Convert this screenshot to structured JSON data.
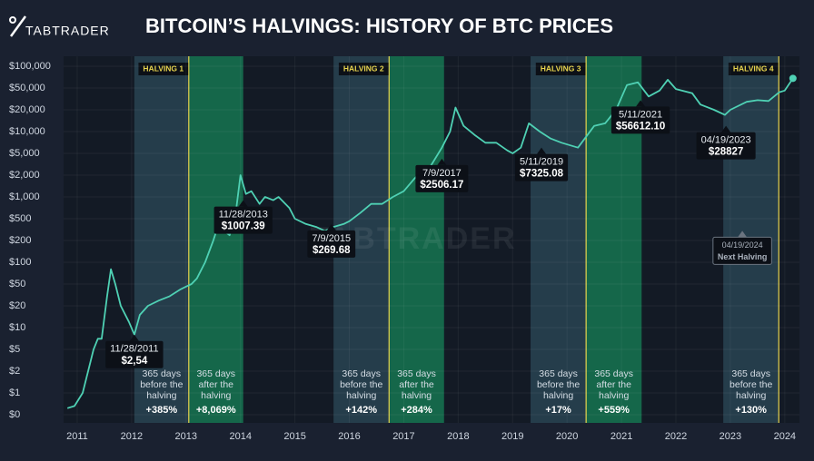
{
  "logo": "TABTRADER",
  "watermark": "TABTRADER",
  "chart_data": {
    "type": "line",
    "title": "BITCOIN’S HALVINGS: HISTORY OF BTC PRICES",
    "x": [
      2010.82,
      2010.95,
      2011.1,
      2011.2,
      2011.3,
      2011.38,
      2011.45,
      2011.55,
      2011.62,
      2011.7,
      2011.8,
      2011.95,
      2012.05,
      2012.15,
      2012.3,
      2012.5,
      2012.7,
      2012.9,
      2013.0,
      2013.1,
      2013.2,
      2013.35,
      2013.5,
      2013.6,
      2013.7,
      2013.8,
      2013.9,
      2014.0,
      2014.1,
      2014.2,
      2014.35,
      2014.45,
      2014.6,
      2014.7,
      2014.9,
      2015.0,
      2015.2,
      2015.4,
      2015.55,
      2015.7,
      2015.9,
      2016.0,
      2016.2,
      2016.4,
      2016.6,
      2016.8,
      2017.0,
      2017.2,
      2017.35,
      2017.5,
      2017.7,
      2017.85,
      2017.95,
      2018.1,
      2018.3,
      2018.5,
      2018.7,
      2018.9,
      2019.0,
      2019.15,
      2019.3,
      2019.5,
      2019.7,
      2019.9,
      2020.2,
      2020.5,
      2020.7,
      2020.9,
      2021.1,
      2021.3,
      2021.5,
      2021.7,
      2021.85,
      2022.0,
      2022.3,
      2022.45,
      2022.7,
      2022.9,
      2023.0,
      2023.3,
      2023.5,
      2023.7,
      2023.9,
      2024.0,
      2024.15
    ],
    "series": [
      {
        "color": "#4fd1b4",
        "values": [
          0.3,
          0.4,
          1,
          2,
          5,
          7,
          7,
          30,
          80,
          50,
          20,
          12,
          8,
          15,
          20,
          25,
          30,
          40,
          45,
          50,
          60,
          100,
          200,
          400,
          300,
          250,
          500,
          2000,
          1100,
          1200,
          800,
          1000,
          900,
          1000,
          700,
          500,
          400,
          350,
          300,
          350,
          400,
          450,
          600,
          800,
          800,
          1000,
          1200,
          1800,
          2500,
          3000,
          6000,
          10000,
          22000,
          12000,
          9000,
          7000,
          7000,
          5500,
          5000,
          6000,
          13000,
          10000,
          8000,
          7000,
          6000,
          12000,
          13000,
          20000,
          55000,
          60000,
          35000,
          45000,
          65000,
          48000,
          40000,
          25000,
          20000,
          17000,
          20000,
          28000,
          30000,
          29000,
          42000,
          45000,
          68000
        ]
      }
    ],
    "xlim": [
      2010.75,
      2024.27
    ],
    "xticks": [
      2011,
      2012,
      2013,
      2014,
      2015,
      2016,
      2017,
      2018,
      2019,
      2020,
      2021,
      2022,
      2023,
      2024
    ],
    "ylim": [
      0,
      100000
    ],
    "yticks": [
      {
        "value": 0,
        "label": "$0"
      },
      {
        "value": 1,
        "label": "$1"
      },
      {
        "value": 2,
        "label": "$2"
      },
      {
        "value": 5,
        "label": "$5"
      },
      {
        "value": 10,
        "label": "$10"
      },
      {
        "value": 20,
        "label": "$20"
      },
      {
        "value": 50,
        "label": "$50"
      },
      {
        "value": 100,
        "label": "$100"
      },
      {
        "value": 200,
        "label": "$200"
      },
      {
        "value": 500,
        "label": "$500"
      },
      {
        "value": 1000,
        "label": "$1,000"
      },
      {
        "value": 2000,
        "label": "$2,000"
      },
      {
        "value": 5000,
        "label": "$5,000"
      },
      {
        "value": 10000,
        "label": "$10,000"
      },
      {
        "value": 20000,
        "label": "$20,000"
      },
      {
        "value": 50000,
        "label": "$50,000"
      },
      {
        "value": 100000,
        "label": "$100,000"
      }
    ],
    "grid": true,
    "halvings": [
      {
        "label": "HALVING 1",
        "x": 2013.05,
        "before": {
          "x0": 2012.05,
          "lines": [
            "365 days",
            "before the",
            "halving"
          ],
          "change": "+385%"
        },
        "after": {
          "x1": 2014.05,
          "lines": [
            "365 days",
            "after the",
            "halving"
          ],
          "change": "+8,069%"
        }
      },
      {
        "label": "HALVING 2",
        "x": 2016.73,
        "before": {
          "x0": 2015.71,
          "lines": [
            "365 days",
            "before the",
            "halving"
          ],
          "change": "+142%"
        },
        "after": {
          "x1": 2017.74,
          "lines": [
            "365 days",
            "after the",
            "halving"
          ],
          "change": "+284%"
        }
      },
      {
        "label": "HALVING 3",
        "x": 2020.35,
        "before": {
          "x0": 2019.33,
          "lines": [
            "365 days",
            "before the",
            "halving"
          ],
          "change": "+17%"
        },
        "after": {
          "x1": 2021.37,
          "lines": [
            "365 days",
            "after the",
            "halving"
          ],
          "change": "+559%"
        }
      },
      {
        "label": "HALVING 4",
        "x": 2023.89,
        "before": {
          "x0": 2022.87,
          "lines": [
            "365 days",
            "before the",
            "halving"
          ],
          "change": "+130%"
        }
      }
    ],
    "annotations": [
      {
        "date": "11/28/2011",
        "price": "$2,54",
        "x": 2012.05,
        "y": 8
      },
      {
        "date": "11/28/2013",
        "price": "$1007.39",
        "x": 2014.05,
        "y": 900
      },
      {
        "date": "7/9/2015",
        "price": "$269.68",
        "x": 2015.67,
        "y": 400
      },
      {
        "date": "7/9/2017",
        "price": "$2506.17",
        "x": 2017.7,
        "y": 4000
      },
      {
        "date": "5/11/2019",
        "price": "$7325.08",
        "x": 2019.53,
        "y": 6000
      },
      {
        "date": "5/11/2021",
        "price": "$56612.10",
        "x": 2021.35,
        "y": 30000
      },
      {
        "date": "04/19/2023",
        "price": "$28827",
        "x": 2022.92,
        "y": 12000
      },
      {
        "date": "04/19/2024",
        "price": "Next Halving",
        "x": 2023.22,
        "y": 300,
        "muted": true
      }
    ]
  }
}
